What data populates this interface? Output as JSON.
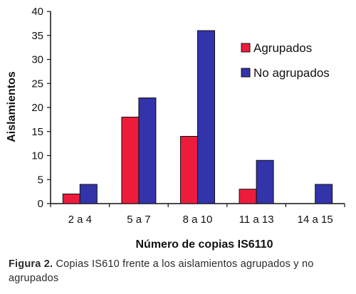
{
  "chart_data": {
    "type": "bar",
    "categories": [
      "2 a 4",
      "5 a 7",
      "8 a 10",
      "11 a 13",
      "14 a 15"
    ],
    "series": [
      {
        "name": "Agrupados",
        "values": [
          2,
          18,
          14,
          3,
          0
        ],
        "color": "#ee1c3c"
      },
      {
        "name": "No agrupados",
        "values": [
          4,
          22,
          36,
          9,
          4
        ],
        "color": "#3333aa"
      }
    ],
    "xlabel": "Número de copias IS6110",
    "ylabel": "Aislamientos",
    "ylim": [
      0,
      40
    ],
    "yticks": [
      0,
      5,
      10,
      15,
      20,
      25,
      30,
      35,
      40
    ],
    "grid": false,
    "legend_position": "top-right"
  },
  "caption": {
    "label": "Figura 2.",
    "text": "Copias IS610 frente a los aislamientos agrupados y no agrupados"
  }
}
